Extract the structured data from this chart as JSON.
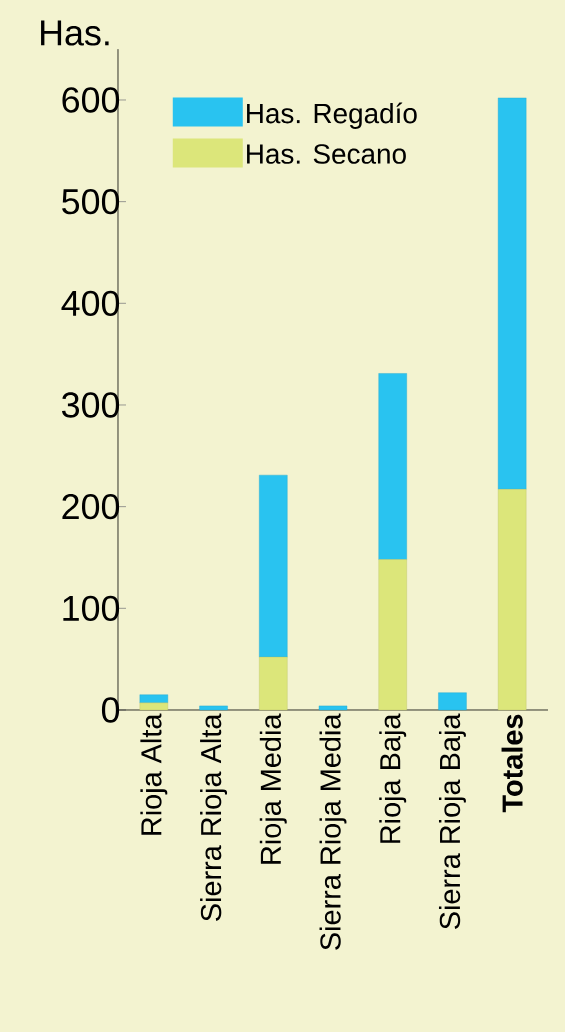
{
  "chart_data": {
    "type": "bar",
    "stacked": true,
    "ylabel": "Has.",
    "categories": [
      "Rioja Alta",
      "Sierra Rioja Alta",
      "Rioja Media",
      "Sierra Rioja Media",
      "Rioja Baja",
      "Sierra Rioja Baja",
      "**Totales**"
    ],
    "series": [
      {
        "name": "Has. Secano",
        "color": "#dce67a",
        "values": [
          7,
          0,
          52,
          0,
          148,
          0,
          217
        ]
      },
      {
        "name": "Has. Regadío",
        "color": "#29c3f0",
        "values": [
          8,
          4,
          179,
          4,
          183,
          17,
          385
        ]
      }
    ],
    "ylim": [
      0,
      650
    ],
    "yticks": [
      0,
      100,
      200,
      300,
      400,
      500,
      600
    ],
    "legend": "top left"
  }
}
